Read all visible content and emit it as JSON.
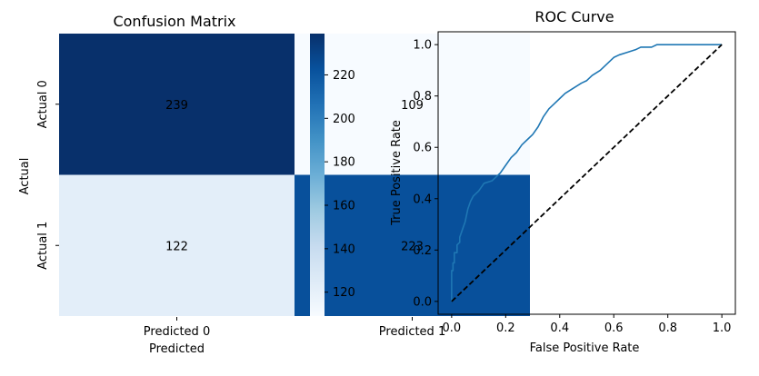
{
  "chart_data": [
    {
      "type": "heatmap",
      "title": "Confusion Matrix",
      "xlabel": "Predicted",
      "ylabel": "Actual",
      "x_categories": [
        "Predicted 0",
        "Predicted 1"
      ],
      "y_categories": [
        "Actual 0",
        "Actual 1"
      ],
      "values": [
        [
          239,
          109
        ],
        [
          122,
          223
        ]
      ],
      "colormap": "Blues",
      "colorbar": {
        "min": 109,
        "max": 239,
        "ticks": [
          120,
          140,
          160,
          180,
          200,
          220
        ],
        "tick_labels": [
          "120",
          "140",
          "160",
          "180",
          "200",
          "220"
        ]
      }
    },
    {
      "type": "line",
      "title": "ROC Curve",
      "xlabel": "False Positive Rate",
      "ylabel": "True Positive Rate",
      "xlim": [
        -0.05,
        1.05
      ],
      "ylim": [
        -0.05,
        1.05
      ],
      "x_ticks": [
        0.0,
        0.2,
        0.4,
        0.6,
        0.8,
        1.0
      ],
      "x_tick_labels": [
        "0.0",
        "0.2",
        "0.4",
        "0.6",
        "0.8",
        "1.0"
      ],
      "y_ticks": [
        0.0,
        0.2,
        0.4,
        0.6,
        0.8,
        1.0
      ],
      "y_tick_labels": [
        "0.0",
        "0.2",
        "0.4",
        "0.6",
        "0.8",
        "1.0"
      ],
      "grid": false,
      "series": [
        {
          "color": "#1f77b4",
          "style": "solid",
          "x": [
            0.0,
            0.0,
            0.005,
            0.005,
            0.01,
            0.01,
            0.02,
            0.02,
            0.03,
            0.03,
            0.04,
            0.05,
            0.06,
            0.07,
            0.08,
            0.1,
            0.12,
            0.15,
            0.18,
            0.2,
            0.22,
            0.24,
            0.26,
            0.28,
            0.3,
            0.32,
            0.34,
            0.36,
            0.38,
            0.4,
            0.42,
            0.45,
            0.48,
            0.5,
            0.52,
            0.55,
            0.58,
            0.6,
            0.62,
            0.65,
            0.68,
            0.7,
            0.74,
            0.76,
            0.8,
            0.85,
            0.9,
            0.95,
            1.0
          ],
          "y": [
            0.0,
            0.12,
            0.12,
            0.15,
            0.15,
            0.19,
            0.19,
            0.22,
            0.23,
            0.25,
            0.28,
            0.31,
            0.36,
            0.39,
            0.41,
            0.43,
            0.46,
            0.47,
            0.5,
            0.53,
            0.56,
            0.58,
            0.61,
            0.63,
            0.65,
            0.68,
            0.72,
            0.75,
            0.77,
            0.79,
            0.81,
            0.83,
            0.85,
            0.86,
            0.88,
            0.9,
            0.93,
            0.95,
            0.96,
            0.97,
            0.98,
            0.99,
            0.99,
            1.0,
            1.0,
            1.0,
            1.0,
            1.0,
            1.0
          ]
        },
        {
          "color": "#000000",
          "style": "dashed",
          "x": [
            0.0,
            1.0
          ],
          "y": [
            0.0,
            1.0
          ]
        }
      ]
    }
  ]
}
